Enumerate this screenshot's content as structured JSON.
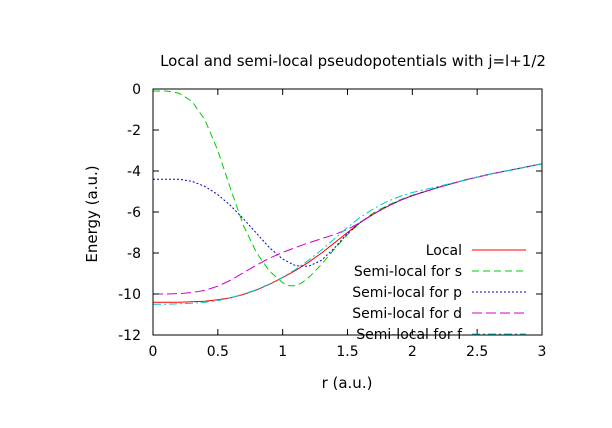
{
  "chart_data": {
    "type": "line",
    "title": "Local and semi-local pseudopotentials with j=l+1/2",
    "xlabel": "r (a.u.)",
    "ylabel": "Energy (a.u.)",
    "xlim": [
      0,
      3
    ],
    "ylim": [
      -12,
      0
    ],
    "xticks": [
      0,
      0.5,
      1,
      1.5,
      2,
      2.5,
      3
    ],
    "xtick_labels": [
      "0",
      "0.5",
      "1",
      "1.5",
      "2",
      "2.5",
      "3"
    ],
    "yticks": [
      0,
      -2,
      -4,
      -6,
      -8,
      -10,
      -12
    ],
    "ytick_labels": [
      "0",
      "-2",
      "-4",
      "-6",
      "-8",
      "-10",
      "-12"
    ],
    "grid": false,
    "legend_position": "bottom-right",
    "series": [
      {
        "name": "Local",
        "color": "#ff0000",
        "dash": "solid",
        "x": [
          0,
          0.1,
          0.2,
          0.3,
          0.4,
          0.5,
          0.6,
          0.7,
          0.8,
          0.9,
          1.0,
          1.1,
          1.2,
          1.3,
          1.4,
          1.5,
          1.6,
          1.7,
          1.8,
          1.9,
          2.0,
          2.2,
          2.4,
          2.6,
          2.8,
          3.0
        ],
        "y": [
          -10.4,
          -10.4,
          -10.4,
          -10.38,
          -10.35,
          -10.28,
          -10.18,
          -10.02,
          -9.8,
          -9.52,
          -9.2,
          -8.85,
          -8.45,
          -8.0,
          -7.5,
          -7.0,
          -6.5,
          -6.1,
          -5.75,
          -5.45,
          -5.2,
          -4.8,
          -4.45,
          -4.15,
          -3.9,
          -3.65
        ]
      },
      {
        "name": "Semi-local for s",
        "color": "#00cc00",
        "dash": "dash",
        "x": [
          0,
          0.1,
          0.2,
          0.3,
          0.4,
          0.5,
          0.6,
          0.7,
          0.8,
          0.9,
          1.0,
          1.05,
          1.1,
          1.15,
          1.2,
          1.3,
          1.4,
          1.5,
          1.6,
          1.7,
          1.8,
          1.9,
          2.0,
          2.2,
          2.4,
          2.6,
          2.8,
          3.0
        ],
        "y": [
          -0.1,
          -0.1,
          -0.2,
          -0.6,
          -1.5,
          -3.0,
          -4.9,
          -6.7,
          -8.0,
          -8.9,
          -9.45,
          -9.6,
          -9.6,
          -9.45,
          -9.2,
          -8.55,
          -7.8,
          -7.1,
          -6.5,
          -6.05,
          -5.7,
          -5.42,
          -5.18,
          -4.8,
          -4.45,
          -4.15,
          -3.9,
          -3.65
        ]
      },
      {
        "name": "Semi-local for p",
        "color": "#0000cc",
        "dash": "dot",
        "x": [
          0,
          0.1,
          0.2,
          0.3,
          0.4,
          0.5,
          0.6,
          0.7,
          0.8,
          0.9,
          1.0,
          1.1,
          1.2,
          1.3,
          1.4,
          1.5,
          1.6,
          1.7,
          1.8,
          1.9,
          2.0,
          2.2,
          2.4,
          2.6,
          2.8,
          3.0
        ],
        "y": [
          -4.4,
          -4.4,
          -4.4,
          -4.5,
          -4.75,
          -5.15,
          -5.7,
          -6.35,
          -7.05,
          -7.75,
          -8.3,
          -8.62,
          -8.65,
          -8.35,
          -7.75,
          -7.05,
          -6.5,
          -6.1,
          -5.75,
          -5.45,
          -5.2,
          -4.8,
          -4.45,
          -4.15,
          -3.9,
          -3.65
        ]
      },
      {
        "name": "Semi-local for d",
        "color": "#cc00cc",
        "dash": "longdash",
        "x": [
          0,
          0.1,
          0.2,
          0.3,
          0.4,
          0.5,
          0.6,
          0.7,
          0.8,
          0.9,
          1.0,
          1.1,
          1.2,
          1.3,
          1.4,
          1.5,
          1.6,
          1.7,
          1.8,
          1.9,
          2.0,
          2.2,
          2.4,
          2.6,
          2.8,
          3.0
        ],
        "y": [
          -10.0,
          -10.0,
          -9.98,
          -9.93,
          -9.82,
          -9.62,
          -9.32,
          -8.95,
          -8.58,
          -8.25,
          -7.97,
          -7.73,
          -7.5,
          -7.3,
          -7.1,
          -6.85,
          -6.5,
          -6.1,
          -5.75,
          -5.45,
          -5.2,
          -4.8,
          -4.45,
          -4.15,
          -3.9,
          -3.65
        ]
      },
      {
        "name": "Semi-local for f",
        "color": "#00cccc",
        "dash": "dashdot",
        "x": [
          0,
          0.1,
          0.2,
          0.3,
          0.4,
          0.5,
          0.6,
          0.7,
          0.8,
          0.9,
          1.0,
          1.1,
          1.2,
          1.3,
          1.4,
          1.5,
          1.6,
          1.7,
          1.8,
          1.9,
          2.0,
          2.2,
          2.4,
          2.6,
          2.8,
          3.0
        ],
        "y": [
          -10.5,
          -10.5,
          -10.48,
          -10.45,
          -10.4,
          -10.32,
          -10.18,
          -10.0,
          -9.78,
          -9.5,
          -9.18,
          -8.8,
          -8.35,
          -7.85,
          -7.3,
          -6.75,
          -6.25,
          -5.85,
          -5.5,
          -5.25,
          -5.05,
          -4.75,
          -4.45,
          -4.15,
          -3.9,
          -3.65
        ]
      }
    ]
  }
}
